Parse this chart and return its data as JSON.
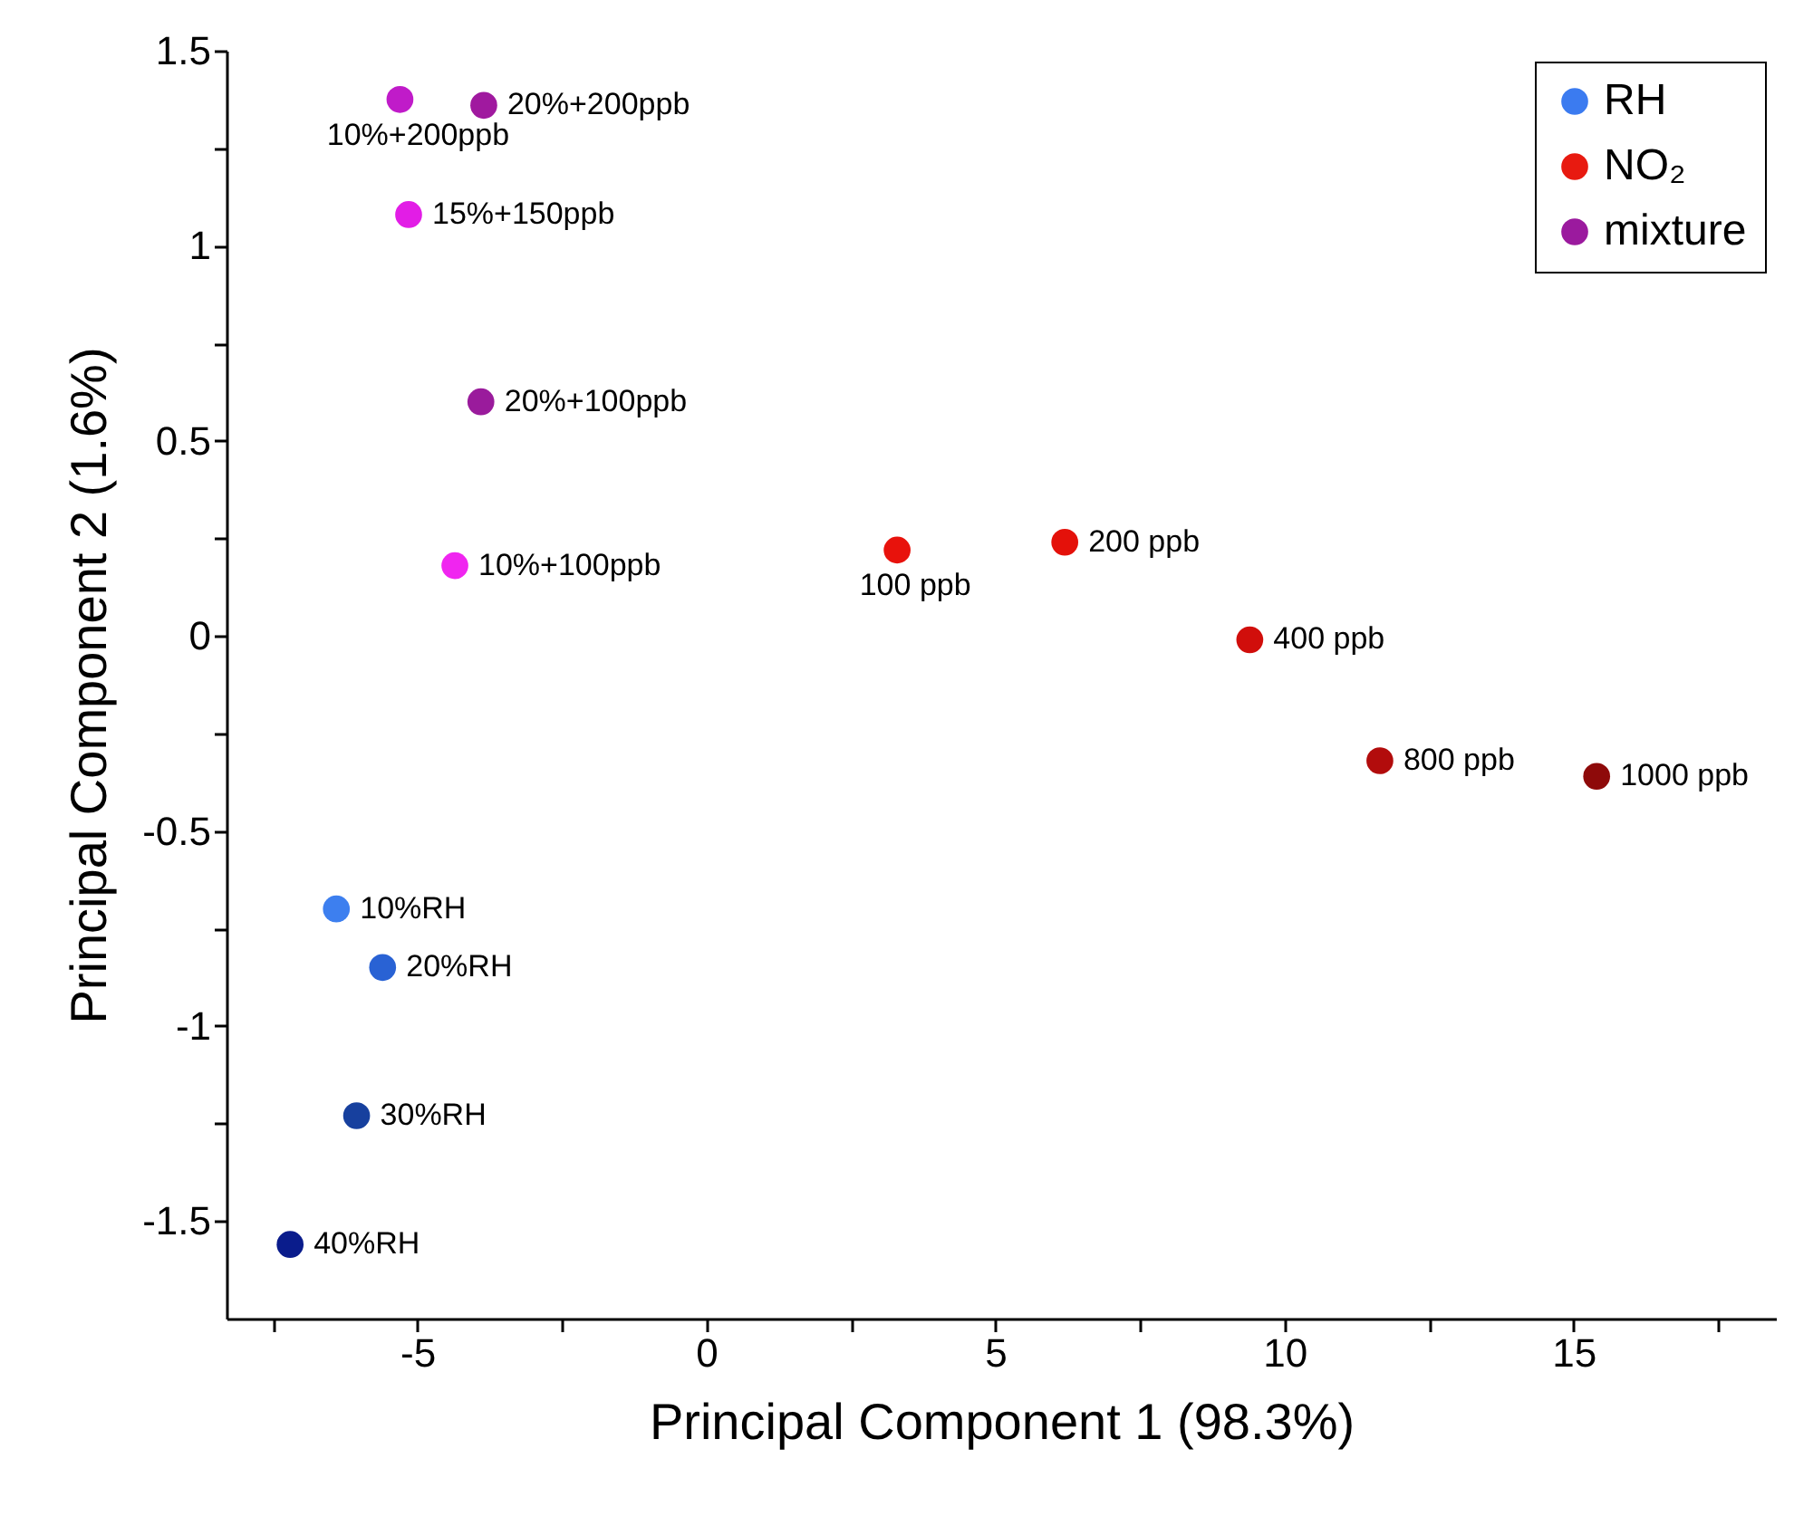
{
  "chart_data": {
    "type": "scatter",
    "xlabel": "Principal Component 1 (98.3%)",
    "ylabel": "Principal Component 2 (1.6%)",
    "xlim": [
      -8.3,
      18.5
    ],
    "ylim": [
      -1.75,
      1.5
    ],
    "xticks": [
      {
        "value": -7.5,
        "label": null
      },
      -5,
      {
        "value": -2.5,
        "label": null
      },
      0,
      {
        "value": 2.5,
        "label": null
      },
      5,
      {
        "value": 7.5,
        "label": null
      },
      10,
      {
        "value": 12.5,
        "label": null
      },
      15,
      {
        "value": 17.5,
        "label": null
      }
    ],
    "yticks": [
      1.5,
      {
        "value": 1.25,
        "label": null
      },
      1,
      {
        "value": 0.75,
        "label": null
      },
      0.5,
      {
        "value": 0.25,
        "label": null
      },
      0,
      {
        "value": -0.25,
        "label": null
      },
      -0.5,
      {
        "value": -0.75,
        "label": null
      },
      -1,
      {
        "value": -1.25,
        "label": null
      },
      -1.5
    ],
    "grid": false,
    "legend": "top right",
    "marker": "circle",
    "series": [
      {
        "name": "RH",
        "color": "#3b7bf0",
        "x": [
          -6.4,
          -5.6,
          -6.05,
          -7.2
        ],
        "values": [
          -0.7,
          -0.85,
          -1.23,
          -1.56
        ],
        "colors": [
          "#3d7fef",
          "#2962d4",
          "#17409e",
          "#0a1c8c"
        ]
      },
      {
        "name": "NO₂",
        "color": "#e81a10",
        "x": [
          3.3,
          6.2,
          9.4,
          11.65,
          15.4
        ],
        "values": [
          0.22,
          0.24,
          -0.01,
          -0.32,
          -0.36
        ],
        "colors": [
          "#e8120c",
          "#e4110a",
          "#d10e0b",
          "#b20c0c",
          "#8e0a0a"
        ]
      },
      {
        "name": "mixture",
        "color": "#9b1a9e",
        "x": [
          -5.3,
          -3.85,
          -5.15,
          -3.9,
          -4.35
        ],
        "values": [
          1.375,
          1.36,
          1.08,
          0.6,
          0.18
        ],
        "colors": [
          "#c01bc9",
          "#a0199f",
          "#e21de6",
          "#9a1b9c",
          "#f025f0"
        ]
      }
    ],
    "annotations": [
      {
        "text": "10%RH",
        "x": -6.4,
        "y": -0.7
      },
      {
        "text": "20%RH",
        "x": -5.6,
        "y": -0.85
      },
      {
        "text": "30%RH",
        "x": -6.05,
        "y": -1.23
      },
      {
        "text": "40%RH",
        "x": -7.2,
        "y": -1.56
      },
      {
        "text": "100 ppb",
        "x": 3.3,
        "y": 0.22
      },
      {
        "text": "200 ppb",
        "x": 6.2,
        "y": 0.24
      },
      {
        "text": "400 ppb",
        "x": 9.4,
        "y": -0.01
      },
      {
        "text": "800 ppb",
        "x": 11.65,
        "y": -0.32
      },
      {
        "text": "1000 ppb",
        "x": 15.4,
        "y": -0.36
      },
      {
        "text": "10%+200ppb",
        "x": -5.3,
        "y": 1.375
      },
      {
        "text": "20%+200ppb",
        "x": -3.85,
        "y": 1.36
      },
      {
        "text": "15%+150ppb",
        "x": -5.15,
        "y": 1.08
      },
      {
        "text": "20%+100ppb",
        "x": -3.9,
        "y": 0.6
      },
      {
        "text": "10%+100ppb",
        "x": -4.35,
        "y": 0.18
      }
    ]
  }
}
